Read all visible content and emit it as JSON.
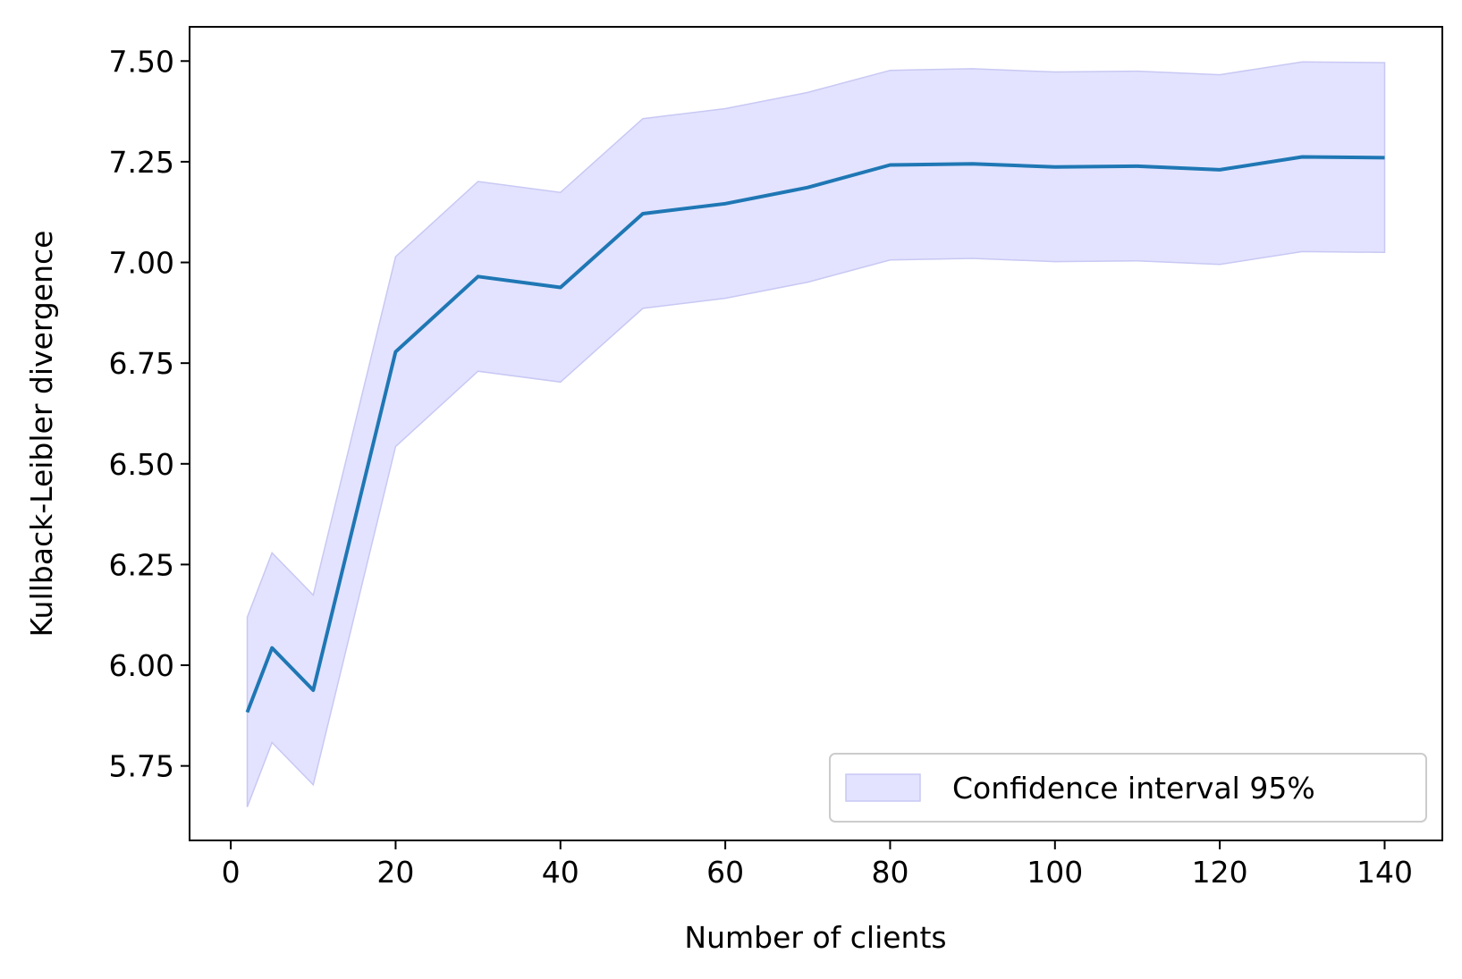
{
  "chart_data": {
    "type": "line",
    "title": "",
    "xlabel": "Number of clients",
    "ylabel": "Kullback-Leibler divergence",
    "xlim": [
      -5,
      147
    ],
    "ylim": [
      5.565,
      7.585
    ],
    "x_ticks": [
      0,
      20,
      40,
      60,
      80,
      100,
      120,
      140
    ],
    "x_tick_labels": [
      "0",
      "20",
      "40",
      "60",
      "80",
      "100",
      "120",
      "140"
    ],
    "y_ticks": [
      5.75,
      6.0,
      6.25,
      6.5,
      6.75,
      7.0,
      7.25,
      7.5
    ],
    "y_tick_labels": [
      "5.75",
      "6.00",
      "6.25",
      "6.50",
      "6.75",
      "7.00",
      "7.25",
      "7.50"
    ],
    "grid": false,
    "legend": {
      "position": "lower-right",
      "entries": [
        "Confidence interval 95%"
      ]
    },
    "x": [
      2,
      5,
      10,
      20,
      30,
      40,
      50,
      60,
      70,
      80,
      90,
      100,
      110,
      120,
      130,
      140
    ],
    "series": [
      {
        "kind": "line",
        "color": "#1f77b4",
        "values": [
          5.883,
          6.043,
          5.938,
          6.778,
          6.965,
          6.938,
          7.121,
          7.146,
          7.186,
          7.242,
          7.245,
          7.237,
          7.239,
          7.23,
          7.262,
          7.26
        ]
      },
      {
        "name": "Confidence interval 95%",
        "kind": "band",
        "color": "#e3e3ff",
        "edge_color": "#c8c8f4",
        "lower": [
          5.648,
          5.808,
          5.703,
          6.543,
          6.73,
          6.703,
          6.886,
          6.911,
          6.951,
          7.006,
          7.01,
          7.002,
          7.004,
          6.995,
          7.027,
          7.025
        ],
        "upper": [
          6.119,
          6.279,
          6.174,
          7.014,
          7.201,
          7.174,
          7.357,
          7.382,
          7.422,
          7.477,
          7.481,
          7.473,
          7.475,
          7.466,
          7.498,
          7.496
        ]
      }
    ]
  }
}
